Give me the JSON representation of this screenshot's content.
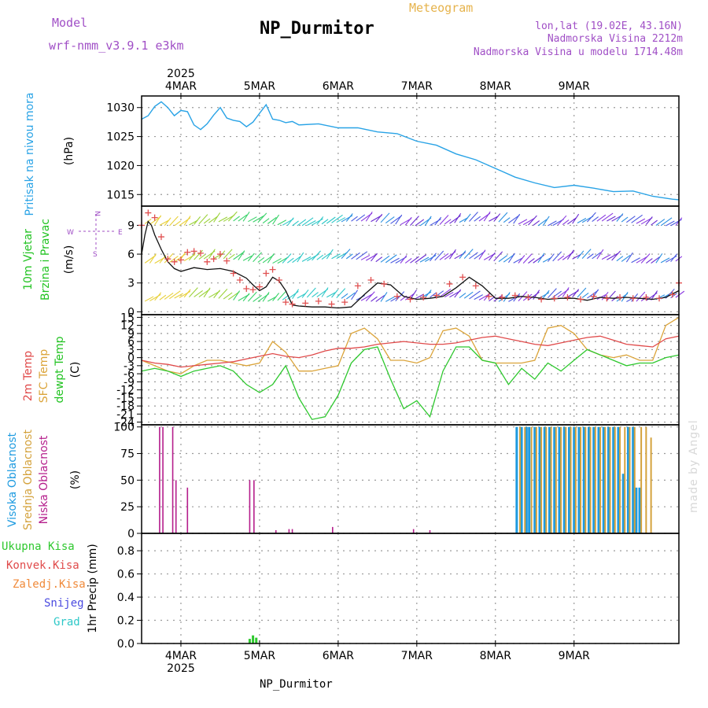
{
  "header": {
    "model_label": "Model",
    "model_name": "wrf-nmm_v3.9.1 e3km",
    "title": "NP_Durmitor",
    "subtitle": "Meteogram",
    "coords": "lon,lat (19.02E, 43.16N)",
    "elevation": "Nadmorska Visina 2212m",
    "model_elevation": "Nadmorska Visina u modelu 1714.48m",
    "footer": "NP_Durmitor",
    "credit": "made by Angel"
  },
  "colors": {
    "pressure": "#29a3e6",
    "temp2m": "#e04a4a",
    "sfc": "#dba43a",
    "dew": "#2ec82e",
    "high": "#1e9be0",
    "mid": "#d4a23c",
    "low": "#b51e8c",
    "wind_speed": "#111111",
    "gust": "#e05050",
    "grid": "#9a9a9a"
  },
  "chart_data": [
    {
      "type": "line",
      "name": "pressure",
      "label_text": "Pritisak na nivou mora",
      "unit": "(hPa)",
      "ylim": [
        1013,
        1032
      ],
      "yticks": [
        1015,
        1020,
        1025,
        1030
      ],
      "x_hours": [
        0,
        2,
        4,
        6,
        8,
        10,
        12,
        14,
        16,
        18,
        20,
        22,
        24,
        26,
        28,
        30,
        32,
        34,
        36,
        38,
        40,
        42,
        44,
        46,
        48,
        54,
        60,
        66,
        72,
        78,
        84,
        90,
        96,
        102,
        108,
        114,
        120,
        126,
        132,
        138,
        144,
        150,
        156,
        162,
        164
      ],
      "values": [
        1028,
        1028.6,
        1030.2,
        1031,
        1030,
        1028.6,
        1029.5,
        1029.3,
        1027,
        1026.2,
        1027.2,
        1028.7,
        1030,
        1028.2,
        1027.8,
        1027.6,
        1026.7,
        1027.5,
        1029,
        1030.5,
        1028,
        1027.8,
        1027.4,
        1027.6,
        1027,
        1027.2,
        1026.5,
        1026.5,
        1025.8,
        1025.5,
        1024.2,
        1023.5,
        1022,
        1021,
        1019.5,
        1018,
        1017,
        1016.2,
        1016.6,
        1016.1,
        1015.5,
        1015.6,
        1014.7,
        1014.2,
        1014.1
      ]
    },
    {
      "type": "line",
      "name": "wind",
      "label_text": "10m Vjetar",
      "label_text2": "Brzina i Pravac",
      "unit": "(m/s)",
      "compass": [
        "N",
        "W",
        "E",
        "S"
      ],
      "ylim": [
        -0.3,
        11
      ],
      "yticks": [
        0,
        3,
        6,
        9
      ],
      "x_hours": [
        0,
        1,
        2,
        3,
        4,
        6,
        8,
        10,
        12,
        16,
        20,
        24,
        28,
        32,
        34,
        36,
        38,
        40,
        42,
        44,
        46,
        48,
        52,
        56,
        60,
        64,
        68,
        72,
        76,
        80,
        84,
        88,
        92,
        96,
        100,
        104,
        108,
        112,
        116,
        120,
        124,
        128,
        132,
        136,
        140,
        144,
        148,
        152,
        156,
        160,
        164
      ],
      "speed": [
        6,
        8,
        9.4,
        9,
        8,
        6.5,
        5.2,
        4.5,
        4.2,
        4.6,
        4.4,
        4.5,
        4.2,
        3.5,
        2.8,
        2.2,
        2.6,
        3.6,
        3.2,
        2.2,
        0.7,
        0.6,
        0.5,
        0.5,
        0.4,
        0.5,
        1.8,
        3,
        2.8,
        1.6,
        1.3,
        1.4,
        1.6,
        2.5,
        3.6,
        2.7,
        1.4,
        1.4,
        1.6,
        1.5,
        1.3,
        1.4,
        1.4,
        1.2,
        1.5,
        1.4,
        1.5,
        1.4,
        1.3,
        1.5,
        2.2
      ],
      "gust_x_hours": [
        0,
        2,
        4,
        6,
        8,
        10,
        12,
        14,
        16,
        18,
        20,
        22,
        24,
        26,
        28,
        30,
        32,
        34,
        36,
        38,
        40,
        42,
        44,
        46,
        50,
        54,
        58,
        62,
        66,
        70,
        74,
        78,
        82,
        86,
        90,
        94,
        98,
        102,
        106,
        110,
        114,
        118,
        122,
        126,
        130,
        134,
        138,
        142,
        146,
        150,
        154,
        158,
        162,
        164
      ],
      "gust": [
        9,
        10.3,
        9.8,
        7.8,
        5.5,
        5.2,
        5.4,
        6.2,
        6.3,
        6.1,
        5.2,
        5.5,
        6,
        5.3,
        4,
        3.3,
        2.4,
        2.3,
        2.6,
        4,
        4.4,
        3.3,
        1,
        0.8,
        0.9,
        1.1,
        0.8,
        1,
        2.7,
        3.3,
        2.9,
        1.6,
        1.3,
        1.5,
        1.7,
        2.9,
        3.6,
        2.7,
        1.6,
        1.5,
        1.7,
        1.5,
        1.3,
        1.4,
        1.5,
        1.3,
        1.6,
        1.4,
        1.5,
        1.4,
        1.5,
        1.4,
        1.8,
        3.0
      ],
      "barb_rows": [
        9.2,
        5.3,
        1.3
      ]
    },
    {
      "type": "line",
      "name": "temperature",
      "label_text": "2m Temp",
      "label_text2": "SFC Temp",
      "label_text3": "dewpt Temp",
      "unit": "(C)",
      "ylim": [
        -25,
        16
      ],
      "yticks": [
        15,
        12,
        9,
        6,
        3,
        0,
        -3,
        -6,
        -9,
        -12,
        -15,
        -18,
        -21,
        -24
      ],
      "x_hours": [
        0,
        4,
        8,
        12,
        16,
        20,
        24,
        28,
        32,
        36,
        40,
        44,
        48,
        52,
        56,
        60,
        64,
        68,
        72,
        76,
        80,
        84,
        88,
        92,
        96,
        100,
        104,
        108,
        112,
        116,
        120,
        124,
        128,
        132,
        136,
        140,
        144,
        148,
        152,
        156,
        160,
        164
      ],
      "t2m": [
        -1,
        -2,
        -2.5,
        -3.5,
        -3,
        -2.5,
        -2,
        -1.5,
        -0.5,
        0.5,
        1.5,
        0.5,
        0,
        1,
        2.5,
        3.5,
        3.5,
        4,
        5,
        5.5,
        6,
        5.5,
        5,
        5,
        5.5,
        6.5,
        7.5,
        8,
        7,
        6,
        5,
        4.5,
        5.5,
        6.5,
        7.5,
        8,
        6.5,
        5,
        4.5,
        4,
        7,
        8
      ],
      "tsfc": [
        -1,
        -3,
        -5,
        -6,
        -3,
        -1,
        -1,
        -2,
        -3,
        -2,
        6,
        2,
        -5,
        -5,
        -4,
        -3,
        9,
        11,
        7,
        -1,
        -1,
        -2,
        0,
        10,
        11,
        8,
        -1,
        -2,
        -2,
        -2,
        -1,
        11,
        12,
        9,
        3,
        1,
        0,
        1,
        -1,
        -1,
        12,
        15
      ],
      "dew": [
        -5,
        -4,
        -5,
        -7,
        -5,
        -4,
        -3,
        -5,
        -10,
        -13,
        -10,
        -3,
        -15,
        -23,
        -22,
        -14,
        -2,
        3,
        4,
        -8,
        -19,
        -16,
        -22,
        -5,
        4,
        4,
        -1,
        -2,
        -10,
        -4,
        -8,
        -2,
        -5,
        -1,
        3,
        1,
        -1,
        -3,
        -2,
        -2,
        0,
        1
      ]
    },
    {
      "type": "bar",
      "name": "cloud",
      "label_text": "Visoka Oblacnost",
      "label_text2": "Srednja Oblacnost",
      "label_text3": "Niska Oblacnost",
      "unit": "(%)",
      "ylim": [
        0,
        102
      ],
      "yticks": [
        0,
        25,
        50,
        75,
        100
      ],
      "low": [
        [
          5.5,
          100
        ],
        [
          6.5,
          100
        ],
        [
          9.5,
          100
        ],
        [
          10.5,
          50
        ],
        [
          14,
          43
        ],
        [
          33,
          50
        ],
        [
          34.3,
          50
        ],
        [
          41,
          3
        ],
        [
          45,
          4
        ],
        [
          46,
          4
        ],
        [
          58.3,
          6
        ],
        [
          83,
          4
        ],
        [
          88,
          3
        ]
      ],
      "high": [
        [
          114.5,
          100
        ],
        [
          116,
          100
        ],
        [
          117.5,
          100
        ],
        [
          118.3,
          100
        ],
        [
          120,
          100
        ],
        [
          121.5,
          100
        ],
        [
          123,
          100
        ],
        [
          124.5,
          100
        ],
        [
          126,
          100
        ],
        [
          127.5,
          100
        ],
        [
          129,
          100
        ],
        [
          130.5,
          100
        ],
        [
          132,
          100
        ],
        [
          133.5,
          100
        ],
        [
          135,
          100
        ],
        [
          136.5,
          100
        ],
        [
          138,
          100
        ],
        [
          139.5,
          100
        ],
        [
          141,
          100
        ],
        [
          142.5,
          100
        ],
        [
          144,
          100
        ],
        [
          145.5,
          100
        ],
        [
          147,
          56
        ],
        [
          148.5,
          100
        ],
        [
          150,
          100
        ],
        [
          151,
          43
        ],
        [
          152,
          43
        ]
      ],
      "mid": [
        [
          115.5,
          100
        ],
        [
          117,
          100
        ],
        [
          119,
          100
        ],
        [
          120.5,
          100
        ],
        [
          122,
          100
        ],
        [
          123.5,
          100
        ],
        [
          125,
          100
        ],
        [
          126.5,
          100
        ],
        [
          128,
          100
        ],
        [
          129.5,
          100
        ],
        [
          131,
          100
        ],
        [
          132.5,
          100
        ],
        [
          134,
          100
        ],
        [
          135.5,
          100
        ],
        [
          137,
          100
        ],
        [
          138.5,
          100
        ],
        [
          140,
          100
        ],
        [
          141.5,
          100
        ],
        [
          143,
          100
        ],
        [
          144.5,
          100
        ],
        [
          146,
          100
        ],
        [
          147.5,
          100
        ],
        [
          149,
          100
        ],
        [
          150.5,
          100
        ],
        [
          152.5,
          100
        ],
        [
          154,
          100
        ],
        [
          155.5,
          90
        ]
      ]
    },
    {
      "type": "bar",
      "name": "precipitation",
      "legend": [
        "Ukupna Kisa",
        "Konvek.Kisa",
        "Zaledj.Kisa",
        "Snijeg",
        "Grad"
      ],
      "unit": "1hr Precip (mm)",
      "ylim": [
        0,
        0.95
      ],
      "yticks": [
        0,
        0.2,
        0.4,
        0.6,
        0.8
      ],
      "bars": [
        [
          33,
          0.04
        ],
        [
          34,
          0.07
        ],
        [
          35,
          0.05
        ]
      ]
    }
  ],
  "time_axis": {
    "start_hour": 0,
    "end_hour": 164,
    "top_year": "2025",
    "bottom_year": "2025",
    "days": [
      {
        "label": "4MAR",
        "hour": 12
      },
      {
        "label": "5MAR",
        "hour": 36
      },
      {
        "label": "6MAR",
        "hour": 60
      },
      {
        "label": "7MAR",
        "hour": 84
      },
      {
        "label": "8MAR",
        "hour": 108
      },
      {
        "label": "9MAR",
        "hour": 132
      }
    ]
  }
}
